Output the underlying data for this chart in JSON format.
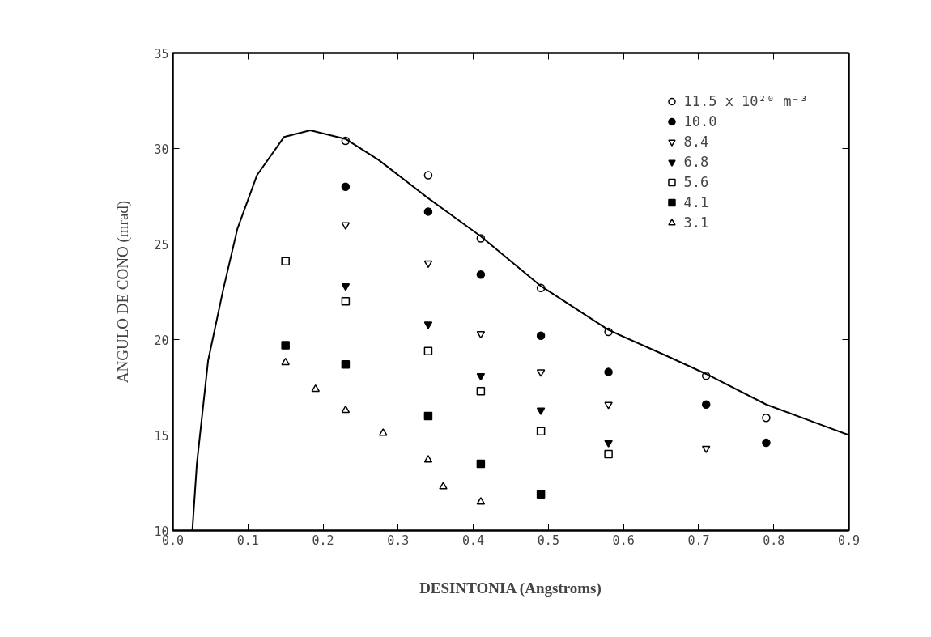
{
  "chart_data": {
    "type": "scatter",
    "xlabel": "DESINTONIA (Angstroms)",
    "ylabel": "ANGULO DE CONO (mrad)",
    "xlim": [
      0.0,
      0.9
    ],
    "ylim": [
      10,
      35
    ],
    "xticks": [
      {
        "value": 0.0,
        "label": "0.0"
      },
      0.1,
      0.2,
      0.3,
      0.4,
      0.5,
      0.6,
      0.7,
      0.8,
      0.9
    ],
    "yticks": [
      10,
      15,
      20,
      25,
      30,
      35
    ],
    "grid": false,
    "legend": "top right",
    "series": [
      {
        "name": "11.5 x 10²⁰ m⁻³",
        "color": "#000000",
        "marker": "circle",
        "x": [
          0.23,
          0.34,
          0.41,
          0.49,
          0.58,
          0.71,
          0.79
        ],
        "values": [
          30.4,
          28.6,
          25.3,
          22.7,
          20.4,
          18.1,
          15.9
        ]
      },
      {
        "name": "10.0",
        "color": "#000000",
        "marker": "circle",
        "x": [
          0.23,
          0.34,
          0.41,
          0.49,
          0.58,
          0.71,
          0.79
        ],
        "values": [
          28.0,
          26.7,
          23.4,
          20.2,
          18.3,
          16.6,
          14.6
        ]
      },
      {
        "name": "8.4",
        "color": "#000000",
        "marker": "triangle",
        "x": [
          0.23,
          0.34,
          0.41,
          0.49,
          0.58,
          0.71
        ],
        "values": [
          26.0,
          24.0,
          20.3,
          18.3,
          16.6,
          14.3
        ]
      },
      {
        "name": "6.8",
        "color": "#000000",
        "marker": "triangle",
        "x": [
          0.23,
          0.34,
          0.41,
          0.49,
          0.58
        ],
        "values": [
          22.8,
          20.8,
          18.1,
          16.3,
          14.6
        ]
      },
      {
        "name": "5.6",
        "color": "#000000",
        "marker": "square",
        "x": [
          0.15,
          0.23,
          0.34,
          0.41,
          0.49,
          0.58
        ],
        "values": [
          24.1,
          22.0,
          19.4,
          17.3,
          15.2,
          14.0
        ]
      },
      {
        "name": "4.1",
        "color": "#000000",
        "marker": "square",
        "x": [
          0.15,
          0.23,
          0.34,
          0.41,
          0.49
        ],
        "values": [
          19.7,
          18.7,
          16.0,
          13.5,
          11.9
        ]
      },
      {
        "name": "3.1",
        "color": "#000000",
        "marker": "triangle",
        "x": [
          0.15,
          0.19,
          0.23,
          0.28,
          0.34,
          0.36,
          0.41
        ],
        "values": [
          18.8,
          17.4,
          16.3,
          15.1,
          13.7,
          12.3,
          11.5
        ]
      },
      {
        "type": "line",
        "color": "#000000",
        "line_style": "solid",
        "x": [
          0.026,
          0.032,
          0.047,
          0.067,
          0.086,
          0.112,
          0.148,
          0.183,
          0.23,
          0.274,
          0.34,
          0.41,
          0.49,
          0.58,
          0.66,
          0.71,
          0.79,
          0.9
        ],
        "values": [
          10.0,
          13.5,
          18.9,
          22.6,
          25.8,
          28.6,
          30.6,
          30.95,
          30.5,
          29.4,
          27.4,
          25.4,
          22.8,
          20.5,
          19.1,
          18.2,
          16.6,
          15.0
        ]
      }
    ]
  }
}
